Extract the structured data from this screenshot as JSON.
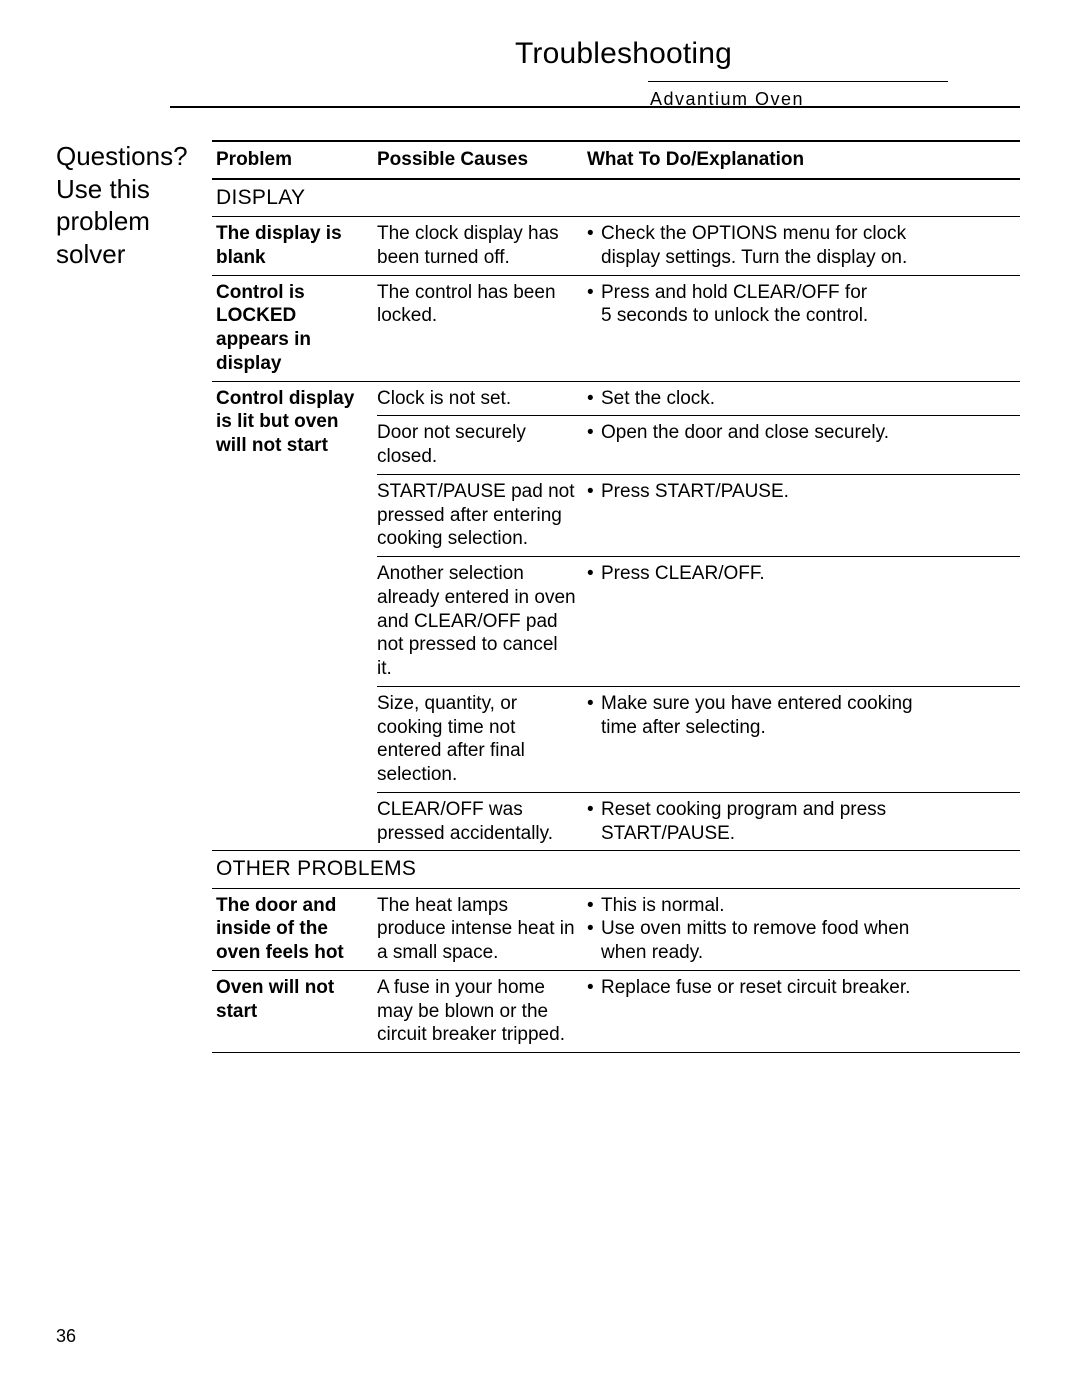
{
  "header": {
    "title": "Troubleshooting",
    "subtitle": "Advantium Oven"
  },
  "sidebar": {
    "line1": "Questions?",
    "line2": "Use this",
    "line3": "problem",
    "line4": "solver"
  },
  "pageNumber": "36",
  "columns": {
    "problem": "Problem",
    "causes": "Possible Causes",
    "what": "What To Do/Explanation"
  },
  "sections": [
    {
      "header": "DISPLAY",
      "problems": [
        {
          "label": "The display is blank",
          "rows": [
            {
              "cause": "The clock display has been turned off.",
              "what": [
                "Check the OPTIONS menu for clock",
                "+display settings. Turn the display on."
              ]
            }
          ]
        },
        {
          "label": "Control is LOCKED appears in display",
          "rows": [
            {
              "cause": "The control has been locked.",
              "what": [
                "Press and hold CLEAR/OFF for",
                "+5 seconds to unlock the control."
              ]
            }
          ]
        },
        {
          "label": "Control display is lit but oven will not start",
          "rows": [
            {
              "cause": "Clock is not set.",
              "what": [
                "Set the clock."
              ]
            },
            {
              "cause": "Door not securely closed.",
              "what": [
                "Open the door and close securely."
              ]
            },
            {
              "cause": "START/PAUSE pad not pressed after entering cooking selection.",
              "what": [
                "Press START/PAUSE."
              ]
            },
            {
              "cause": "Another selection already entered in oven and CLEAR/OFF pad not pressed to cancel it.",
              "what": [
                "Press CLEAR/OFF."
              ]
            },
            {
              "cause": "Size, quantity, or cooking time not entered after final selection.",
              "what": [
                "Make sure you have entered cooking",
                "+time after selecting."
              ]
            },
            {
              "cause": "CLEAR/OFF was pressed accidentally.",
              "what": [
                "Reset cooking program and press",
                "+START/PAUSE."
              ]
            }
          ]
        }
      ]
    },
    {
      "header": "OTHER PROBLEMS",
      "problems": [
        {
          "label": "The door and inside of the oven feels hot",
          "rows": [
            {
              "cause": "The heat lamps produce intense heat in a small space.",
              "what": [
                "This is normal.",
                "Use oven mitts to remove food when",
                "+when ready."
              ]
            }
          ]
        },
        {
          "label": "Oven will not start",
          "rows": [
            {
              "cause": "A fuse in your home may be blown or the circuit breaker tripped.",
              "what": [
                "Replace fuse or reset circuit breaker."
              ]
            }
          ]
        }
      ]
    }
  ]
}
